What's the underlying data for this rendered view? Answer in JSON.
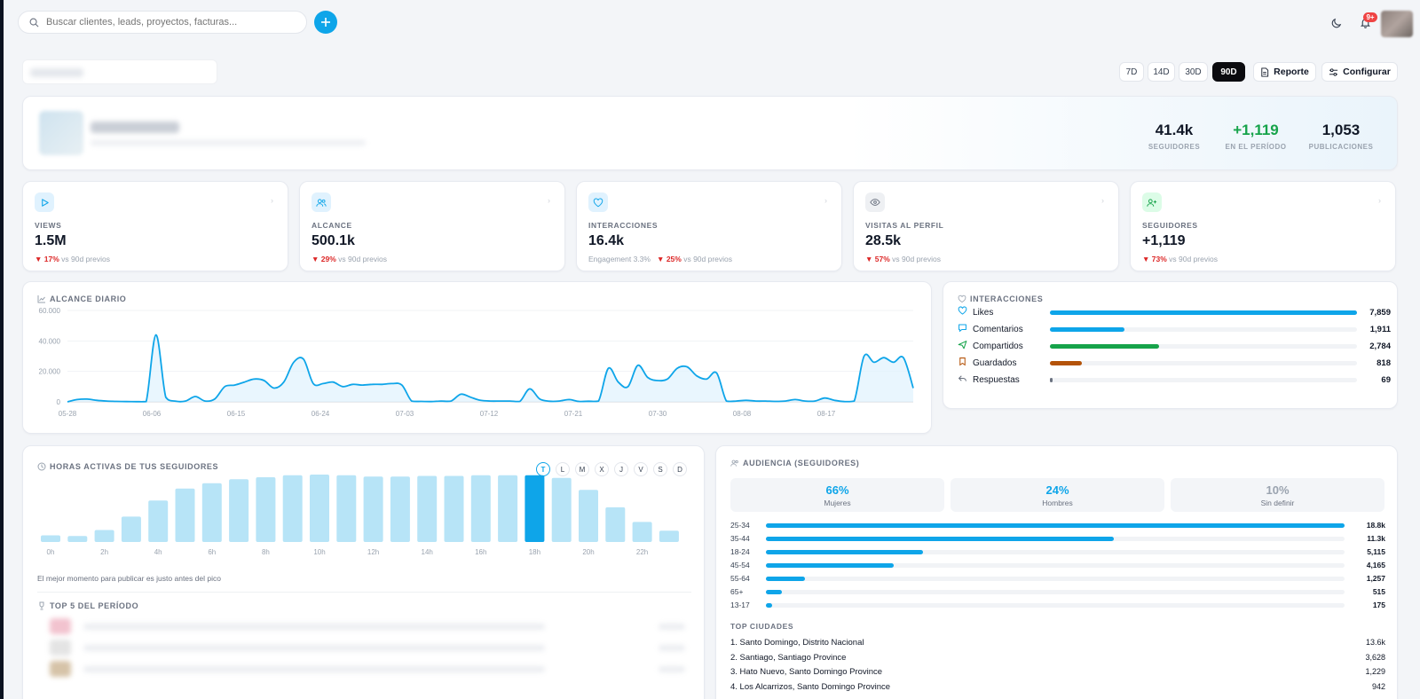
{
  "search": {
    "placeholder": "Buscar clientes, leads, proyectos, facturas..."
  },
  "notifications": {
    "badge": "9+"
  },
  "ranges": [
    {
      "label": "7D",
      "active": false
    },
    {
      "label": "14D",
      "active": false
    },
    {
      "label": "30D",
      "active": false
    },
    {
      "label": "90D",
      "active": true
    }
  ],
  "actions": {
    "report": "Reporte",
    "configure": "Configurar"
  },
  "profile": {
    "stats": [
      {
        "value": "41.4k",
        "label": "SEGUIDORES",
        "color": "#111827"
      },
      {
        "value": "+1,119",
        "label": "EN EL PERÍODO",
        "color": "#16a34a"
      },
      {
        "value": "1,053",
        "label": "PUBLICACIONES",
        "color": "#111827"
      }
    ]
  },
  "kpis": [
    {
      "icon": "play-icon",
      "icon_color": "#0ea5e9",
      "icon_bg": "#e0f2fe",
      "label": "VIEWS",
      "value": "1.5M",
      "extra": "",
      "change": "▼ 17%",
      "compare": "vs 90d previos"
    },
    {
      "icon": "users-icon",
      "icon_color": "#0ea5e9",
      "icon_bg": "#e0f2fe",
      "label": "ALCANCE",
      "value": "500.1k",
      "extra": "",
      "change": "▼ 29%",
      "compare": "vs 90d previos"
    },
    {
      "icon": "heart-icon",
      "icon_color": "#0ea5e9",
      "icon_bg": "#e0f2fe",
      "label": "INTERACCIONES",
      "value": "16.4k",
      "extra": "Engagement 3.3%",
      "change": "▼ 25%",
      "compare": "vs 90d previos"
    },
    {
      "icon": "eye-icon",
      "icon_color": "#6b7280",
      "icon_bg": "#eef0f3",
      "label": "VISITAS AL PERFIL",
      "value": "28.5k",
      "extra": "",
      "change": "▼ 57%",
      "compare": "vs 90d previos"
    },
    {
      "icon": "user-plus-icon",
      "icon_color": "#16a34a",
      "icon_bg": "#dcfce7",
      "label": "SEGUIDORES",
      "value": "+1,119",
      "extra": "",
      "change": "▼ 73%",
      "compare": "vs 90d previos"
    }
  ],
  "reach": {
    "title": "ALCANCE DIARIO"
  },
  "interactions": {
    "title": "INTERACCIONES",
    "max": 7859,
    "rows": [
      {
        "icon": "heart-icon",
        "name": "Likes",
        "value": 7859,
        "display": "7,859",
        "color": "#0ea5e9"
      },
      {
        "icon": "comment-icon",
        "name": "Comentarios",
        "value": 1911,
        "display": "1,911",
        "color": "#0ea5e9"
      },
      {
        "icon": "send-icon",
        "name": "Compartidos",
        "value": 2784,
        "display": "2,784",
        "color": "#16a34a"
      },
      {
        "icon": "bookmark-icon",
        "name": "Guardados",
        "value": 818,
        "display": "818",
        "color": "#b45309"
      },
      {
        "icon": "reply-icon",
        "name": "Respuestas",
        "value": 69,
        "display": "69",
        "color": "#6b7280"
      }
    ]
  },
  "hours": {
    "title": "HORAS ACTIVAS DE TUS SEGUIDORES",
    "days": [
      "T",
      "L",
      "M",
      "X",
      "J",
      "V",
      "S",
      "D"
    ],
    "active_day": 0,
    "note": "El mejor momento para publicar es justo antes del pico",
    "top5_title": "TOP 5 DEL PERÍODO"
  },
  "audience": {
    "title": "AUDIENCIA (SEGUIDORES)",
    "genders": [
      {
        "value": "66%",
        "label": "Mujeres",
        "color": "#0ea5e9"
      },
      {
        "value": "24%",
        "label": "Hombres",
        "color": "#0ea5e9"
      },
      {
        "value": "10%",
        "label": "Sin definir",
        "color": "#9aa3af"
      }
    ],
    "ages": [
      {
        "label": "25-34",
        "value": 18800,
        "display": "18.8k"
      },
      {
        "label": "35-44",
        "value": 11300,
        "display": "11.3k"
      },
      {
        "label": "18-24",
        "value": 5115,
        "display": "5,115"
      },
      {
        "label": "45-54",
        "value": 4165,
        "display": "4,165"
      },
      {
        "label": "55-64",
        "value": 1257,
        "display": "1,257"
      },
      {
        "label": "65+",
        "value": 515,
        "display": "515"
      },
      {
        "label": "13-17",
        "value": 175,
        "display": "175"
      }
    ],
    "cities_title": "TOP CIUDADES",
    "cities": [
      {
        "name": "1. Santo Domingo, Distrito Nacional",
        "value": "13.6k"
      },
      {
        "name": "2. Santiago, Santiago Province",
        "value": "3,628"
      },
      {
        "name": "3. Hato Nuevo, Santo Domingo Province",
        "value": "1,229"
      },
      {
        "name": "4. Los Alcarrizos, Santo Domingo Province",
        "value": "942"
      }
    ]
  },
  "chart_data": [
    {
      "type": "area",
      "title": "ALCANCE DIARIO",
      "x_ticks": [
        "05-28",
        "06-06",
        "06-15",
        "06-24",
        "07-03",
        "07-12",
        "07-21",
        "07-30",
        "08-08",
        "08-17"
      ],
      "y_ticks": [
        "0",
        "20.000",
        "40.000",
        "60.000"
      ],
      "ylim": [
        0,
        60000
      ],
      "color": "#0ea5e9",
      "series": [
        {
          "values": [
            0,
            1500,
            1800,
            1000,
            500,
            300,
            200,
            100,
            200,
            44000,
            3000,
            400,
            500,
            3500,
            500,
            2000,
            10000,
            11000,
            13000,
            15000,
            14000,
            9000,
            13000,
            26000,
            28000,
            12000,
            12000,
            13000,
            10000,
            11500,
            11000,
            11500,
            11500,
            12000,
            11000,
            500,
            300,
            200,
            500,
            500,
            5000,
            3000,
            1000,
            500,
            500,
            500,
            300,
            8500,
            2000,
            400,
            500,
            1500,
            300,
            400,
            500,
            22000,
            13000,
            10000,
            24000,
            16000,
            14000,
            15000,
            22000,
            23000,
            17000,
            15000,
            19000,
            500,
            500,
            1000,
            500,
            500,
            300,
            500,
            1500,
            500,
            500,
            2500,
            1000,
            200,
            500,
            30000,
            26000,
            29000,
            26000,
            29000,
            9000
          ]
        }
      ]
    },
    {
      "type": "bar",
      "title": "HORAS ACTIVAS DE TUS SEGUIDORES",
      "x_ticks": [
        "0h",
        "2h",
        "4h",
        "6h",
        "8h",
        "10h",
        "12h",
        "14h",
        "16h",
        "18h",
        "20h",
        "22h"
      ],
      "values": [
        10,
        9,
        18,
        38,
        62,
        80,
        88,
        94,
        97,
        100,
        101,
        100,
        98,
        98,
        99,
        99,
        100,
        100,
        100,
        96,
        78,
        52,
        30,
        17
      ],
      "highlight_index": 18,
      "color": "#b7e4f7",
      "highlight_color": "#0ea5e9"
    }
  ]
}
